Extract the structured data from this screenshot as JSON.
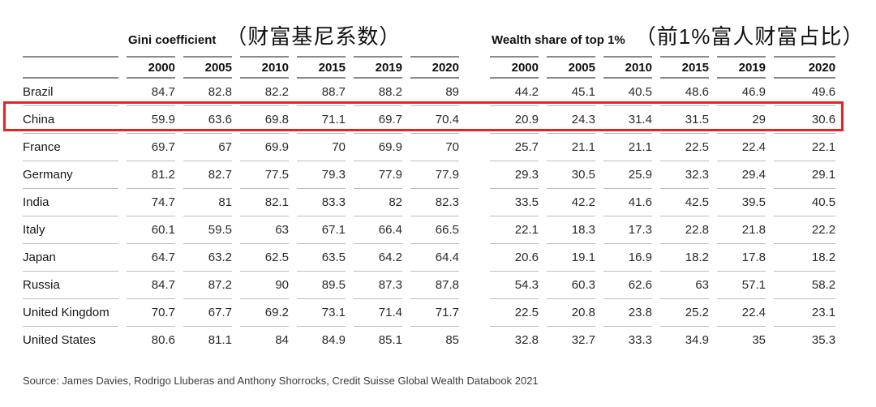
{
  "table": {
    "groups": [
      {
        "title_en": "Gini coefficient",
        "title_zh": "（财富基尼系数）"
      },
      {
        "title_en": "Wealth share of top 1%",
        "title_zh": "（前1%富人财富占比）"
      }
    ],
    "years": [
      "2000",
      "2005",
      "2010",
      "2015",
      "2019",
      "2020"
    ],
    "rows": [
      {
        "country": "Brazil",
        "highlighted": false,
        "gini": [
          "84.7",
          "82.8",
          "82.2",
          "88.7",
          "88.2",
          "89"
        ],
        "wealth_share": [
          "44.2",
          "45.1",
          "40.5",
          "48.6",
          "46.9",
          "49.6"
        ]
      },
      {
        "country": "China",
        "highlighted": true,
        "gini": [
          "59.9",
          "63.6",
          "69.8",
          "71.1",
          "69.7",
          "70.4"
        ],
        "wealth_share": [
          "20.9",
          "24.3",
          "31.4",
          "31.5",
          "29",
          "30.6"
        ]
      },
      {
        "country": "France",
        "highlighted": false,
        "gini": [
          "69.7",
          "67",
          "69.9",
          "70",
          "69.9",
          "70"
        ],
        "wealth_share": [
          "25.7",
          "21.1",
          "21.1",
          "22.5",
          "22.4",
          "22.1"
        ]
      },
      {
        "country": "Germany",
        "highlighted": false,
        "gini": [
          "81.2",
          "82.7",
          "77.5",
          "79.3",
          "77.9",
          "77.9"
        ],
        "wealth_share": [
          "29.3",
          "30.5",
          "25.9",
          "32.3",
          "29.4",
          "29.1"
        ]
      },
      {
        "country": "India",
        "highlighted": false,
        "gini": [
          "74.7",
          "81",
          "82.1",
          "83.3",
          "82",
          "82.3"
        ],
        "wealth_share": [
          "33.5",
          "42.2",
          "41.6",
          "42.5",
          "39.5",
          "40.5"
        ]
      },
      {
        "country": "Italy",
        "highlighted": false,
        "gini": [
          "60.1",
          "59.5",
          "63",
          "67.1",
          "66.4",
          "66.5"
        ],
        "wealth_share": [
          "22.1",
          "18.3",
          "17.3",
          "22.8",
          "21.8",
          "22.2"
        ]
      },
      {
        "country": "Japan",
        "highlighted": false,
        "gini": [
          "64.7",
          "63.2",
          "62.5",
          "63.5",
          "64.2",
          "64.4"
        ],
        "wealth_share": [
          "20.6",
          "19.1",
          "16.9",
          "18.2",
          "17.8",
          "18.2"
        ]
      },
      {
        "country": "Russia",
        "highlighted": false,
        "gini": [
          "84.7",
          "87.2",
          "90",
          "89.5",
          "87.3",
          "87.8"
        ],
        "wealth_share": [
          "54.3",
          "60.3",
          "62.6",
          "63",
          "57.1",
          "58.2"
        ]
      },
      {
        "country": "United Kingdom",
        "highlighted": false,
        "gini": [
          "70.7",
          "67.7",
          "69.2",
          "73.1",
          "71.4",
          "71.7"
        ],
        "wealth_share": [
          "22.5",
          "20.8",
          "23.8",
          "25.2",
          "22.4",
          "23.1"
        ]
      },
      {
        "country": "United States",
        "highlighted": false,
        "gini": [
          "80.6",
          "81.1",
          "84",
          "84.9",
          "85.1",
          "85"
        ],
        "wealth_share": [
          "32.8",
          "32.7",
          "33.3",
          "34.9",
          "35",
          "35.3"
        ]
      }
    ],
    "highlight_color": "#e42322"
  },
  "source": "Source: James Davies, Rodrigo Lluberas and Anthony Shorrocks, Credit Suisse Global Wealth Databook 2021",
  "chart_data": {
    "type": "table",
    "title": "Gini coefficient （财富基尼系数） and Wealth share of top 1% （前1%富人财富占比）",
    "categories": [
      "2000",
      "2005",
      "2010",
      "2015",
      "2019",
      "2020"
    ],
    "series": [
      {
        "name": "Brazil",
        "gini": [
          84.7,
          82.8,
          82.2,
          88.7,
          88.2,
          89
        ],
        "wealth_share_top1": [
          44.2,
          45.1,
          40.5,
          48.6,
          46.9,
          49.6
        ]
      },
      {
        "name": "China",
        "gini": [
          59.9,
          63.6,
          69.8,
          71.1,
          69.7,
          70.4
        ],
        "wealth_share_top1": [
          20.9,
          24.3,
          31.4,
          31.5,
          29,
          30.6
        ]
      },
      {
        "name": "France",
        "gini": [
          69.7,
          67,
          69.9,
          70,
          69.9,
          70
        ],
        "wealth_share_top1": [
          25.7,
          21.1,
          21.1,
          22.5,
          22.4,
          22.1
        ]
      },
      {
        "name": "Germany",
        "gini": [
          81.2,
          82.7,
          77.5,
          79.3,
          77.9,
          77.9
        ],
        "wealth_share_top1": [
          29.3,
          30.5,
          25.9,
          32.3,
          29.4,
          29.1
        ]
      },
      {
        "name": "India",
        "gini": [
          74.7,
          81,
          82.1,
          83.3,
          82,
          82.3
        ],
        "wealth_share_top1": [
          33.5,
          42.2,
          41.6,
          42.5,
          39.5,
          40.5
        ]
      },
      {
        "name": "Italy",
        "gini": [
          60.1,
          59.5,
          63,
          67.1,
          66.4,
          66.5
        ],
        "wealth_share_top1": [
          22.1,
          18.3,
          17.3,
          22.8,
          21.8,
          22.2
        ]
      },
      {
        "name": "Japan",
        "gini": [
          64.7,
          63.2,
          62.5,
          63.5,
          64.2,
          64.4
        ],
        "wealth_share_top1": [
          20.6,
          19.1,
          16.9,
          18.2,
          17.8,
          18.2
        ]
      },
      {
        "name": "Russia",
        "gini": [
          84.7,
          87.2,
          90,
          89.5,
          87.3,
          87.8
        ],
        "wealth_share_top1": [
          54.3,
          60.3,
          62.6,
          63,
          57.1,
          58.2
        ]
      },
      {
        "name": "United Kingdom",
        "gini": [
          70.7,
          67.7,
          69.2,
          73.1,
          71.4,
          71.7
        ],
        "wealth_share_top1": [
          22.5,
          20.8,
          23.8,
          25.2,
          22.4,
          23.1
        ]
      },
      {
        "name": "United States",
        "gini": [
          80.6,
          81.1,
          84,
          84.9,
          85.1,
          85
        ],
        "wealth_share_top1": [
          32.8,
          32.7,
          33.3,
          34.9,
          35,
          35.3
        ]
      }
    ],
    "annotations": [
      "China row highlighted with red rectangle"
    ],
    "source": "Source: James Davies, Rodrigo Lluberas and Anthony Shorrocks, Credit Suisse Global Wealth Databook 2021"
  }
}
